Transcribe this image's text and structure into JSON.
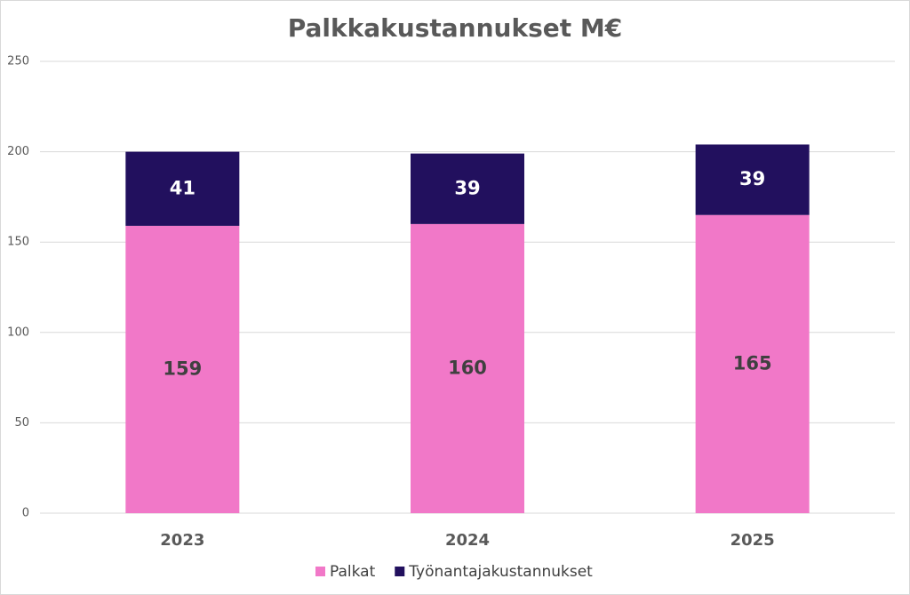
{
  "chart_data": {
    "type": "stacked_bar",
    "title": "Palkkakustannukset M€",
    "categories": [
      "2023",
      "2024",
      "2025"
    ],
    "series": [
      {
        "name": "Palkat",
        "color": "#f178c8",
        "values": [
          159,
          160,
          165
        ]
      },
      {
        "name": "Työnantajakustannukset",
        "color": "#22105e",
        "values": [
          41,
          39,
          39
        ]
      }
    ],
    "ylim": [
      0,
      250
    ],
    "yticks": [
      0,
      50,
      100,
      150,
      200,
      250
    ],
    "grid": true,
    "legend": "bottom"
  }
}
